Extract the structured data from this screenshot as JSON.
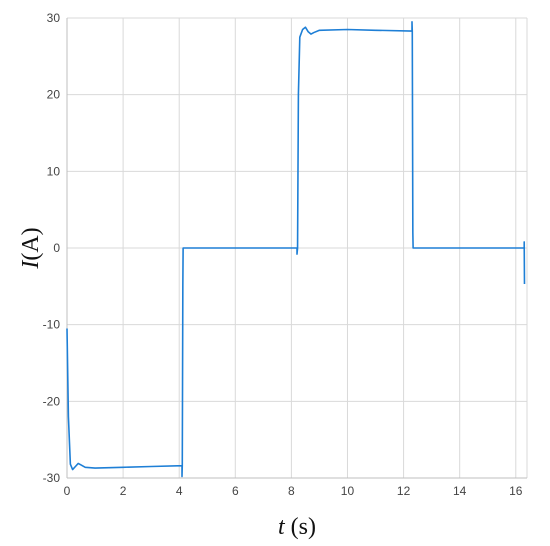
{
  "chart_data": {
    "type": "line",
    "xlabel": {
      "var": "t",
      "unit": " (s)"
    },
    "ylabel": {
      "var": "I",
      "unit": "(A)"
    },
    "xlim": [
      0,
      16.4
    ],
    "ylim": [
      -30,
      30
    ],
    "xticks": [
      0,
      2,
      4,
      6,
      8,
      10,
      12,
      14,
      16
    ],
    "yticks": [
      -30,
      -20,
      -10,
      0,
      10,
      20,
      30
    ],
    "grid": {
      "vertical": true,
      "horizontal": true
    },
    "legend": "none",
    "series": [
      {
        "color": "#1e7fd6",
        "points": [
          [
            0.0,
            -10.5
          ],
          [
            0.05,
            -22
          ],
          [
            0.12,
            -28.2
          ],
          [
            0.2,
            -28.9
          ],
          [
            0.3,
            -28.5
          ],
          [
            0.4,
            -28.1
          ],
          [
            0.5,
            -28.3
          ],
          [
            0.65,
            -28.6
          ],
          [
            1.0,
            -28.7
          ],
          [
            2.0,
            -28.6
          ],
          [
            3.0,
            -28.5
          ],
          [
            4.1,
            -28.4
          ],
          [
            4.1,
            -29.8
          ],
          [
            4.11,
            -28.4
          ],
          [
            4.13,
            -4.8
          ],
          [
            4.14,
            0
          ],
          [
            6.0,
            0
          ],
          [
            8.2,
            0
          ],
          [
            8.2,
            -0.8
          ],
          [
            8.22,
            0
          ],
          [
            8.25,
            20
          ],
          [
            8.3,
            27.5
          ],
          [
            8.4,
            28.5
          ],
          [
            8.5,
            28.8
          ],
          [
            8.6,
            28.2
          ],
          [
            8.7,
            27.9
          ],
          [
            8.8,
            28.1
          ],
          [
            9.0,
            28.4
          ],
          [
            10.0,
            28.5
          ],
          [
            11.0,
            28.4
          ],
          [
            12.3,
            28.3
          ],
          [
            12.3,
            29.5
          ],
          [
            12.31,
            28.3
          ],
          [
            12.33,
            2
          ],
          [
            12.34,
            0
          ],
          [
            14.0,
            0
          ],
          [
            16.3,
            0
          ],
          [
            16.3,
            0.8
          ],
          [
            16.31,
            -4.7
          ]
        ]
      }
    ]
  }
}
